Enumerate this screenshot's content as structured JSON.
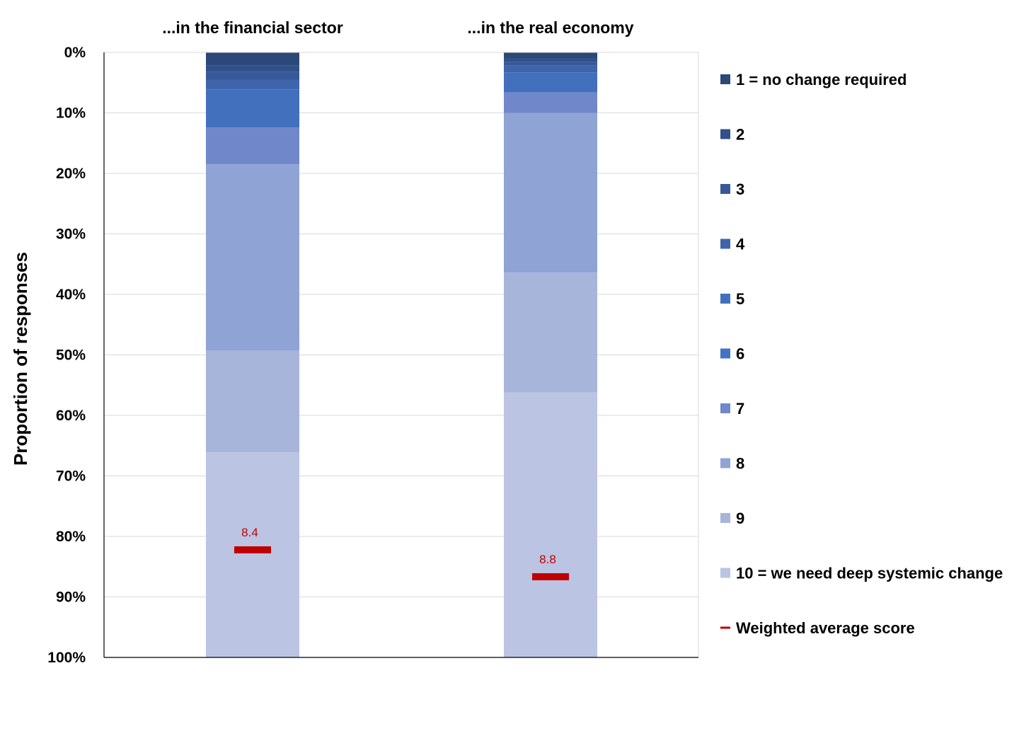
{
  "chart_data": {
    "type": "bar",
    "stacked": true,
    "orientation": "vertical",
    "y_axis_inverted": true,
    "categories": [
      "...in the financial sector",
      "...in the real economy"
    ],
    "ylabel": "Proportion of responses",
    "ylim": [
      0,
      100
    ],
    "yticks": [
      0,
      10,
      20,
      30,
      40,
      50,
      60,
      70,
      80,
      90,
      100
    ],
    "ytick_labels": [
      "0%",
      "10%",
      "20%",
      "30%",
      "40%",
      "50%",
      "60%",
      "70%",
      "80%",
      "90%",
      "100%"
    ],
    "grid": true,
    "legend_position": "right",
    "series": [
      {
        "name": "1 = no change required",
        "color": "#2b4878",
        "values": [
          2.2,
          1.0
        ]
      },
      {
        "name": "2",
        "color": "#30508a",
        "values": [
          1.0,
          0.6
        ]
      },
      {
        "name": "3",
        "color": "#37599a",
        "values": [
          1.3,
          0.6
        ]
      },
      {
        "name": "4",
        "color": "#3e64ab",
        "values": [
          1.6,
          1.1
        ]
      },
      {
        "name": "5",
        "color": "#4370bd",
        "values": [
          6.3,
          3.3
        ]
      },
      {
        "name": "6",
        "color": "#4472c4",
        "values": [
          0.01,
          0.01
        ]
      },
      {
        "name": "7",
        "color": "#7088c9",
        "values": [
          6.1,
          3.4
        ]
      },
      {
        "name": "8",
        "color": "#8fa3d4",
        "values": [
          30.8,
          26.4
        ]
      },
      {
        "name": "9",
        "color": "#a8b5da",
        "values": [
          16.8,
          19.8
        ]
      },
      {
        "name": "10 = we need deep systemic change",
        "color": "#bbc4e2",
        "values": [
          33.9,
          43.8
        ]
      }
    ],
    "weighted_average": {
      "name": "Weighted average score",
      "color": "#c00000",
      "values": [
        8.4,
        8.8
      ],
      "labels": [
        "8.4",
        "8.8"
      ]
    }
  }
}
